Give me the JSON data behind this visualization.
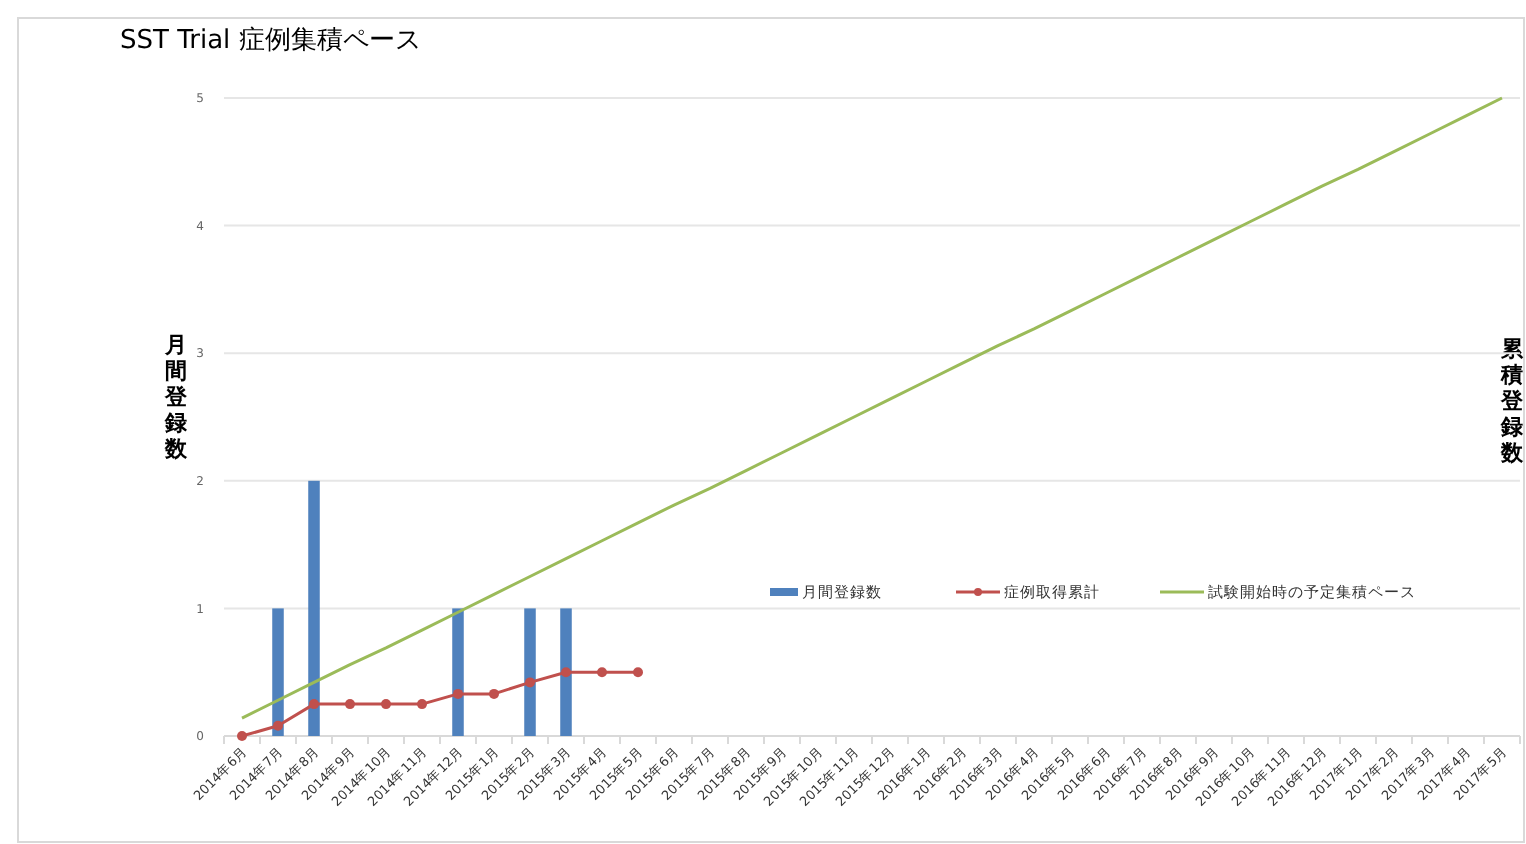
{
  "chart_data": {
    "type": "bar",
    "title": "SST Trial 症例集積ペース",
    "ylabel": "月間登録数",
    "y2label": "累積登録数",
    "categories": [
      "2014年6月",
      "2014年7月",
      "2014年8月",
      "2014年9月",
      "2014年10月",
      "2014年11月",
      "2014年12月",
      "2015年1月",
      "2015年2月",
      "2015年3月",
      "2015年4月",
      "2015年5月",
      "2015年6月",
      "2015年7月",
      "2015年8月",
      "2015年9月",
      "2015年10月",
      "2015年11月",
      "2015年12月",
      "2016年1月",
      "2016年2月",
      "2016年3月",
      "2016年4月",
      "2016年5月",
      "2016年6月",
      "2016年7月",
      "2016年8月",
      "2016年9月",
      "2016年10月",
      "2016年11月",
      "2016年12月",
      "2017年1月",
      "2017年2月",
      "2017年3月",
      "2017年4月",
      "2017年5月"
    ],
    "series": [
      {
        "name": "月間登録数",
        "color": "#4f81bd",
        "values": [
          0,
          1,
          2,
          0,
          0,
          0,
          1,
          0,
          1,
          1,
          0,
          0,
          null,
          null,
          null,
          null,
          null,
          null,
          null,
          null,
          null,
          null,
          null,
          null,
          null,
          null,
          null,
          null,
          null,
          null,
          null,
          null,
          null,
          null,
          null,
          null
        ]
      },
      {
        "name": "症例取得累計",
        "type": "line",
        "color": "#c0504d",
        "marker": "circle",
        "values": [
          0,
          0.08,
          0.25,
          0.25,
          0.25,
          0.25,
          0.33,
          0.33,
          0.42,
          0.5,
          0.5,
          0.5,
          null,
          null,
          null,
          null,
          null,
          null,
          null,
          null,
          null,
          null,
          null,
          null,
          null,
          null,
          null,
          null,
          null,
          null,
          null,
          null,
          null,
          null,
          null,
          null
        ]
      },
      {
        "name": "試験開始時の予定集積ペース",
        "type": "line",
        "color": "#9bbb59",
        "marker": "none",
        "values": [
          0.14,
          0.28,
          0.42,
          0.56,
          0.69,
          0.83,
          0.97,
          1.11,
          1.25,
          1.39,
          1.53,
          1.67,
          1.81,
          1.94,
          2.08,
          2.22,
          2.36,
          2.5,
          2.64,
          2.78,
          2.92,
          3.06,
          3.19,
          3.33,
          3.47,
          3.61,
          3.75,
          3.89,
          4.03,
          4.17,
          4.31,
          4.44,
          4.58,
          4.72,
          4.86,
          5.0
        ]
      }
    ],
    "ylim": [
      0,
      5
    ],
    "yticks": [
      0,
      1,
      2,
      3,
      4,
      5
    ],
    "grid": "y",
    "legend": "right"
  }
}
